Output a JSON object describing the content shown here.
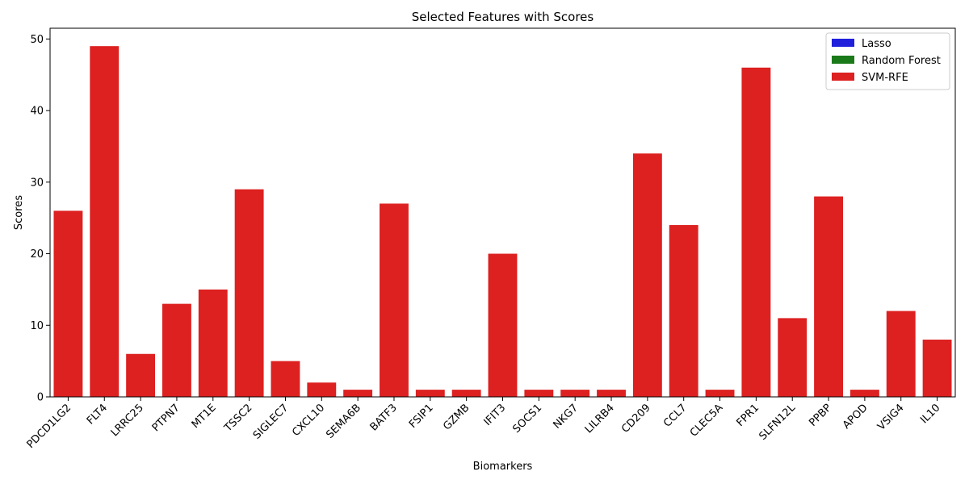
{
  "chart_data": {
    "type": "bar",
    "title": "Selected Features with Scores",
    "xlabel": "Biomarkers",
    "ylabel": "Scores",
    "ylim": [
      0,
      51.5
    ],
    "yticks": [
      0,
      10,
      20,
      30,
      40,
      50
    ],
    "legend_position": "top-right",
    "categories": [
      "PDCD1LG2",
      "FLT4",
      "LRRC25",
      "PTPN7",
      "MT1E",
      "TSSC2",
      "SIGLEC7",
      "CXCL10",
      "SEMA6B",
      "BATF3",
      "FSIP1",
      "GZMB",
      "IFIT3",
      "SOCS1",
      "NKG7",
      "LILRB4",
      "CD209",
      "CCL7",
      "CLEC5A",
      "FPR1",
      "SLFN12L",
      "PPBP",
      "APOD",
      "VSIG4",
      "IL10"
    ],
    "series": [
      {
        "name": "Lasso",
        "color": "#1f1fdc",
        "values": [
          0,
          0,
          0,
          0,
          0,
          0,
          0,
          0,
          0,
          0,
          0,
          0,
          0,
          0,
          0,
          0,
          0,
          0,
          0,
          0,
          0,
          0,
          0,
          0,
          0
        ]
      },
      {
        "name": "Random Forest",
        "color": "#1a7a1a",
        "values": [
          0,
          0,
          0,
          0,
          0,
          0,
          0,
          0,
          0,
          0,
          0,
          0,
          0,
          0,
          0,
          0,
          0,
          0,
          0,
          0,
          0,
          0,
          0,
          0,
          0
        ]
      },
      {
        "name": "SVM-RFE",
        "color": "#dd2020",
        "values": [
          26,
          49,
          6,
          13,
          15,
          29,
          5,
          2,
          1,
          27,
          1,
          1,
          20,
          1,
          1,
          1,
          34,
          24,
          1,
          46,
          11,
          28,
          1,
          12,
          8
        ]
      }
    ]
  }
}
